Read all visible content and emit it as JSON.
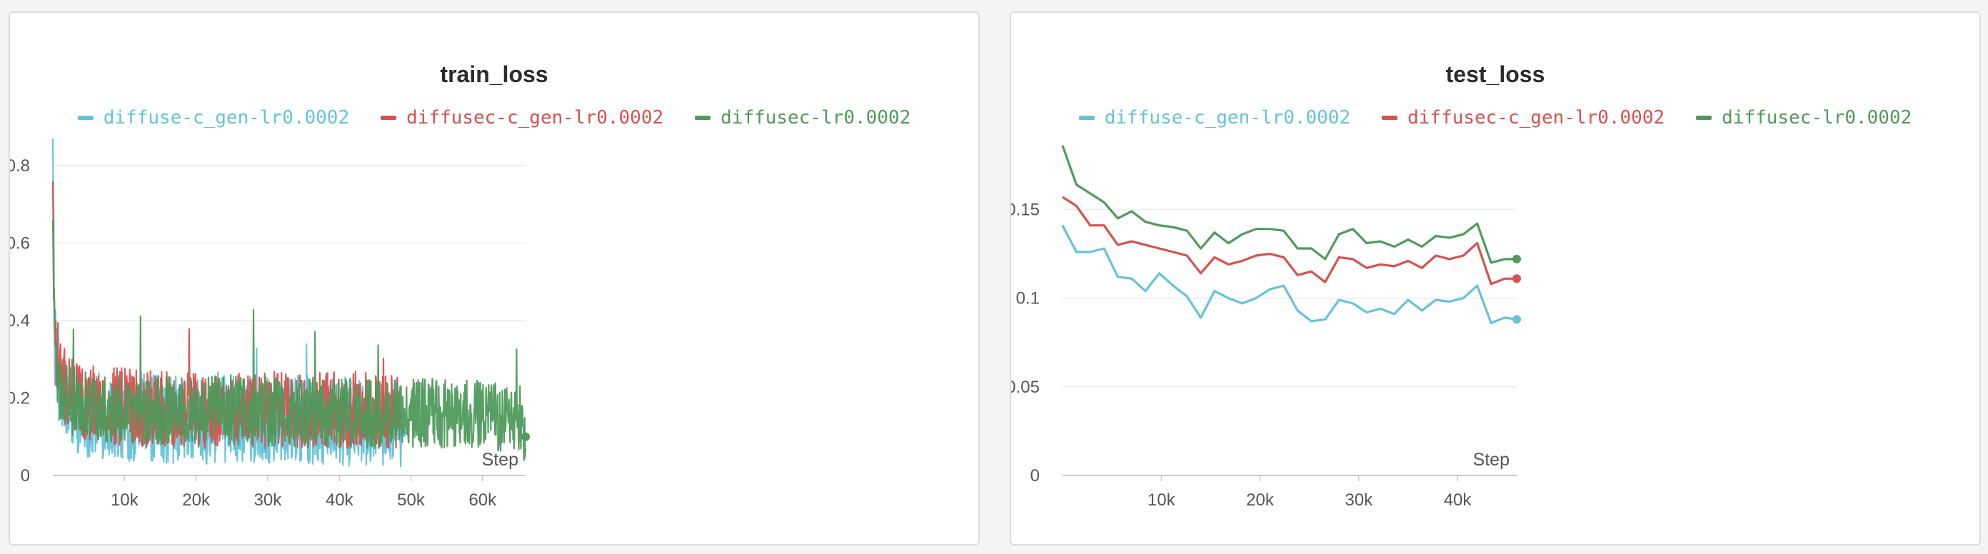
{
  "colors": {
    "blue": "#64c3d9",
    "red": "#d9514e",
    "green": "#4f9a5c"
  },
  "chart_data": [
    {
      "type": "line",
      "title": "train_loss",
      "xlabel": "Step",
      "ylabel": "",
      "xlim": [
        0,
        66000
      ],
      "ylim": [
        0,
        0.87
      ],
      "xticks": [
        10000,
        20000,
        30000,
        40000,
        50000,
        60000
      ],
      "xtick_labels": [
        "10k",
        "20k",
        "30k",
        "40k",
        "50k",
        "60k"
      ],
      "yticks": [
        0,
        0.2,
        0.4,
        0.6,
        0.8
      ],
      "ytick_labels": [
        "0",
        "0.2",
        "0.4",
        "0.6",
        "0.8"
      ],
      "grid": true,
      "legend": "top-center",
      "series": [
        {
          "name": "diffuse-c_gen-lr0.0002",
          "color": "#64c3d9",
          "x": [
            0,
            200,
            500,
            1000,
            2000,
            4000,
            8000,
            15000,
            25000,
            35000,
            45000,
            48800
          ],
          "y": [
            0.87,
            0.35,
            0.25,
            0.2,
            0.17,
            0.14,
            0.13,
            0.12,
            0.12,
            0.12,
            0.11,
            0.11
          ],
          "noise_hi": 0.14,
          "noise_lo": 0.09,
          "spike": 0.36
        },
        {
          "name": "diffusec-c_gen-lr0.0002",
          "color": "#d9514e",
          "x": [
            0,
            200,
            500,
            1000,
            2000,
            4000,
            8000,
            15000,
            25000,
            35000,
            45000,
            48200
          ],
          "y": [
            0.76,
            0.42,
            0.3,
            0.25,
            0.2,
            0.17,
            0.16,
            0.15,
            0.15,
            0.15,
            0.15,
            0.15
          ],
          "noise_hi": 0.12,
          "noise_lo": 0.08,
          "spike": 0.4
        },
        {
          "name": "diffusec-lr0.0002",
          "color": "#4f9a5c",
          "x": [
            0,
            200,
            500,
            1000,
            2000,
            4000,
            8000,
            15000,
            25000,
            35000,
            45000,
            55000,
            65000,
            66000
          ],
          "y": [
            0.66,
            0.4,
            0.28,
            0.22,
            0.19,
            0.17,
            0.16,
            0.16,
            0.16,
            0.15,
            0.15,
            0.15,
            0.14,
            0.1
          ],
          "noise_hi": 0.1,
          "noise_lo": 0.08,
          "spike": 0.44
        }
      ]
    },
    {
      "type": "line",
      "title": "test_loss",
      "xlabel": "Step",
      "ylabel": "",
      "xlim": [
        0,
        46000
      ],
      "ylim": [
        0,
        0.19
      ],
      "xticks": [
        10000,
        20000,
        30000,
        40000
      ],
      "xtick_labels": [
        "10k",
        "20k",
        "30k",
        "40k"
      ],
      "yticks": [
        0,
        0.05,
        0.1,
        0.15
      ],
      "ytick_labels": [
        "0",
        "0.05",
        "0.1",
        "0.15"
      ],
      "grid": true,
      "legend": "top-center",
      "series": [
        {
          "name": "diffuse-c_gen-lr0.0002",
          "color": "#64c3d9",
          "x": [
            0,
            1400,
            2800,
            4200,
            5600,
            7000,
            8400,
            9800,
            11200,
            12600,
            14000,
            15400,
            16800,
            18200,
            19600,
            21000,
            22400,
            23800,
            25200,
            26600,
            28000,
            29400,
            30800,
            32200,
            33600,
            35000,
            36400,
            37800,
            39200,
            40600,
            42000,
            43400,
            44800,
            46000
          ],
          "y": [
            0.141,
            0.126,
            0.126,
            0.128,
            0.112,
            0.111,
            0.104,
            0.114,
            0.107,
            0.101,
            0.089,
            0.104,
            0.1,
            0.097,
            0.1,
            0.105,
            0.107,
            0.093,
            0.087,
            0.088,
            0.099,
            0.097,
            0.092,
            0.094,
            0.091,
            0.099,
            0.093,
            0.099,
            0.098,
            0.1,
            0.107,
            0.086,
            0.089,
            0.088
          ]
        },
        {
          "name": "diffusec-c_gen-lr0.0002",
          "color": "#d9514e",
          "x": [
            0,
            1400,
            2800,
            4200,
            5600,
            7000,
            8400,
            9800,
            11200,
            12600,
            14000,
            15400,
            16800,
            18200,
            19600,
            21000,
            22400,
            23800,
            25200,
            26600,
            28000,
            29400,
            30800,
            32200,
            33600,
            35000,
            36400,
            37800,
            39200,
            40600,
            42000,
            43400,
            44800,
            46000
          ],
          "y": [
            0.157,
            0.152,
            0.141,
            0.141,
            0.13,
            0.132,
            0.13,
            0.128,
            0.126,
            0.124,
            0.114,
            0.123,
            0.119,
            0.121,
            0.124,
            0.125,
            0.123,
            0.113,
            0.115,
            0.109,
            0.123,
            0.122,
            0.117,
            0.119,
            0.118,
            0.121,
            0.117,
            0.124,
            0.122,
            0.124,
            0.131,
            0.108,
            0.111,
            0.111
          ]
        },
        {
          "name": "diffusec-lr0.0002",
          "color": "#4f9a5c",
          "x": [
            0,
            1400,
            2800,
            4200,
            5600,
            7000,
            8400,
            9800,
            11200,
            12600,
            14000,
            15400,
            16800,
            18200,
            19600,
            21000,
            22400,
            23800,
            25200,
            26600,
            28000,
            29400,
            30800,
            32200,
            33600,
            35000,
            36400,
            37800,
            39200,
            40600,
            42000,
            43400,
            44800,
            46000
          ],
          "y": [
            0.186,
            0.164,
            0.159,
            0.154,
            0.145,
            0.149,
            0.143,
            0.141,
            0.14,
            0.138,
            0.128,
            0.137,
            0.131,
            0.136,
            0.139,
            0.139,
            0.138,
            0.128,
            0.128,
            0.122,
            0.136,
            0.139,
            0.131,
            0.132,
            0.129,
            0.133,
            0.129,
            0.135,
            0.134,
            0.136,
            0.142,
            0.12,
            0.122,
            0.122
          ]
        }
      ]
    }
  ]
}
